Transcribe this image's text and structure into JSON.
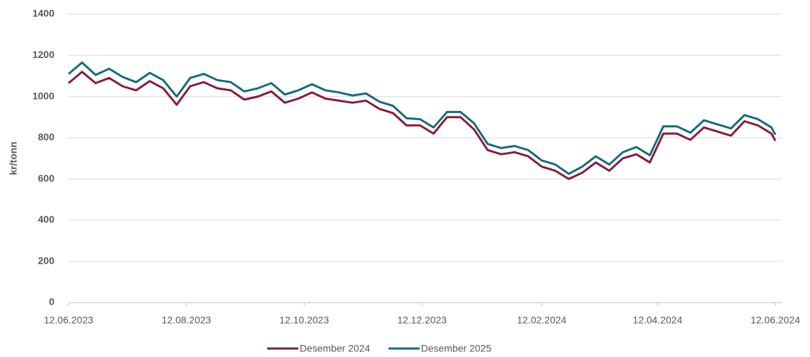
{
  "chart_data": {
    "type": "line",
    "y_label": "kr/tonn",
    "x": [
      "2023-06-12",
      "2023-06-19",
      "2023-06-26",
      "2023-07-03",
      "2023-07-10",
      "2023-07-17",
      "2023-07-24",
      "2023-07-31",
      "2023-08-07",
      "2023-08-14",
      "2023-08-21",
      "2023-08-28",
      "2023-09-04",
      "2023-09-11",
      "2023-09-18",
      "2023-09-25",
      "2023-10-02",
      "2023-10-09",
      "2023-10-16",
      "2023-10-23",
      "2023-10-30",
      "2023-11-06",
      "2023-11-13",
      "2023-11-20",
      "2023-11-27",
      "2023-12-04",
      "2023-12-11",
      "2023-12-18",
      "2023-12-25",
      "2024-01-01",
      "2024-01-08",
      "2024-01-15",
      "2024-01-22",
      "2024-01-29",
      "2024-02-05",
      "2024-02-12",
      "2024-02-19",
      "2024-02-26",
      "2024-03-04",
      "2024-03-11",
      "2024-03-18",
      "2024-03-25",
      "2024-04-01",
      "2024-04-08",
      "2024-04-15",
      "2024-04-22",
      "2024-04-29",
      "2024-05-06",
      "2024-05-13",
      "2024-05-20",
      "2024-05-27",
      "2024-06-03",
      "2024-06-10",
      "2024-06-12"
    ],
    "series": [
      {
        "name": "Desember 2024",
        "color": "#8b1a3a",
        "values": [
          1065,
          1120,
          1065,
          1090,
          1050,
          1030,
          1075,
          1040,
          960,
          1050,
          1070,
          1040,
          1030,
          985,
          1000,
          1025,
          970,
          990,
          1020,
          990,
          980,
          970,
          980,
          940,
          920,
          860,
          860,
          820,
          900,
          900,
          840,
          740,
          720,
          730,
          710,
          660,
          640,
          600,
          630,
          680,
          640,
          700,
          720,
          680,
          820,
          820,
          790,
          850,
          830,
          810,
          880,
          860,
          820,
          785
        ]
      },
      {
        "name": "Desember 2025",
        "color": "#136b80",
        "values": [
          1110,
          1165,
          1105,
          1135,
          1095,
          1070,
          1115,
          1080,
          1000,
          1090,
          1110,
          1080,
          1070,
          1025,
          1040,
          1065,
          1010,
          1030,
          1060,
          1030,
          1020,
          1005,
          1015,
          975,
          955,
          895,
          890,
          850,
          925,
          925,
          870,
          770,
          750,
          760,
          740,
          690,
          670,
          625,
          660,
          710,
          670,
          730,
          755,
          715,
          855,
          855,
          825,
          885,
          865,
          845,
          910,
          890,
          850,
          815
        ]
      }
    ],
    "ylim": [
      0,
      1400
    ],
    "yticks": [
      0,
      200,
      400,
      600,
      800,
      1000,
      1200,
      1400
    ],
    "xlim": [
      "2023-06-12",
      "2024-06-12"
    ],
    "xticks": [
      {
        "value": "2023-06-12",
        "label": "12.06.2023"
      },
      {
        "value": "2023-08-12",
        "label": "12.08.2023"
      },
      {
        "value": "2023-10-12",
        "label": "12.10.2023"
      },
      {
        "value": "2023-12-12",
        "label": "12.12.2023"
      },
      {
        "value": "2024-02-12",
        "label": "12.02.2024"
      },
      {
        "value": "2024-04-12",
        "label": "12.04.2024"
      },
      {
        "value": "2024-06-12",
        "label": "12.06.2024"
      }
    ],
    "grid": true,
    "legend": "bottom"
  }
}
